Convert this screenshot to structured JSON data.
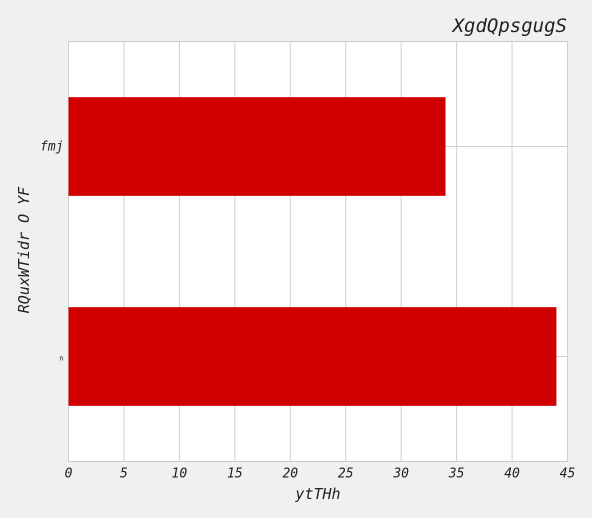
{
  "chart_data": {
    "type": "bar",
    "orientation": "horizontal",
    "title": "XgdQpsgugS",
    "xlabel": "ytTHh",
    "ylabel": "RQuxWTidr O YF",
    "categories": [
      "fmj",
      "n"
    ],
    "values": [
      34,
      44
    ],
    "xlim": [
      0,
      45
    ],
    "xticks": [
      "0",
      "5",
      "10",
      "15",
      "20",
      "25",
      "30",
      "35",
      "40",
      "45"
    ],
    "grid": true,
    "bar_color": "#d10000"
  }
}
